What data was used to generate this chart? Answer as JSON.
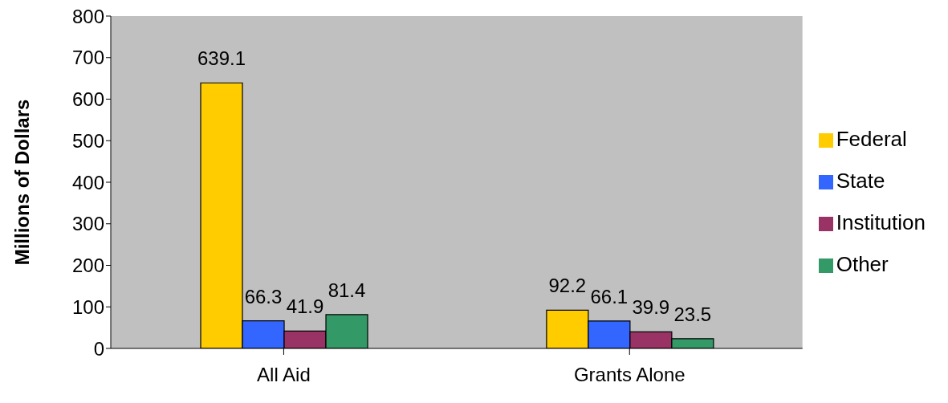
{
  "chart_data": {
    "type": "bar",
    "ylabel": "Millions of Dollars",
    "categories": [
      "All Aid",
      "Grants Alone"
    ],
    "series": [
      {
        "name": "Federal",
        "color": "#ffcc00",
        "values": [
          639.1,
          92.2
        ]
      },
      {
        "name": "State",
        "color": "#3366ff",
        "values": [
          66.3,
          66.1
        ]
      },
      {
        "name": "Institution",
        "color": "#993366",
        "values": [
          41.9,
          39.9
        ]
      },
      {
        "name": "Other",
        "color": "#339966",
        "values": [
          81.4,
          23.5
        ]
      }
    ],
    "ylim": [
      0,
      800
    ],
    "yticks": [
      0,
      100,
      200,
      300,
      400,
      500,
      600,
      700,
      800
    ],
    "grid": false,
    "legend": "right",
    "data_labels": true
  }
}
